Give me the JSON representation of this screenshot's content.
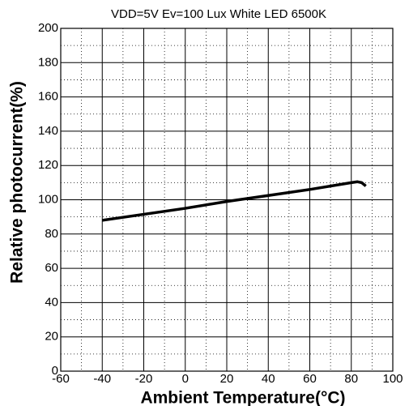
{
  "chart_data": {
    "type": "line",
    "title": "VDD=5V   Ev=100 Lux   White LED 6500K",
    "x_label": "Ambient Temperature(°C)",
    "y_label": "Relative photocurrent(%)",
    "x": [
      -40,
      0,
      20,
      40,
      60,
      80,
      83,
      85,
      87
    ],
    "series": [
      {
        "name": "Relative photocurrent",
        "color": "#000000",
        "values": [
          88,
          95,
          99,
          102.5,
          106,
          110,
          110.5,
          110,
          108
        ]
      }
    ],
    "xlim": [
      -60,
      100
    ],
    "ylim": [
      0,
      200
    ],
    "xticks": [
      -60,
      -40,
      -20,
      0,
      20,
      40,
      60,
      80,
      100
    ],
    "yticks": [
      0,
      20,
      40,
      60,
      80,
      100,
      120,
      140,
      160,
      180,
      200
    ],
    "xticks_minor": [
      -50,
      -30,
      -10,
      10,
      30,
      50,
      70,
      90
    ],
    "yticks_minor": [
      10,
      30,
      50,
      70,
      90,
      110,
      130,
      150,
      170,
      190
    ],
    "grid": true
  }
}
